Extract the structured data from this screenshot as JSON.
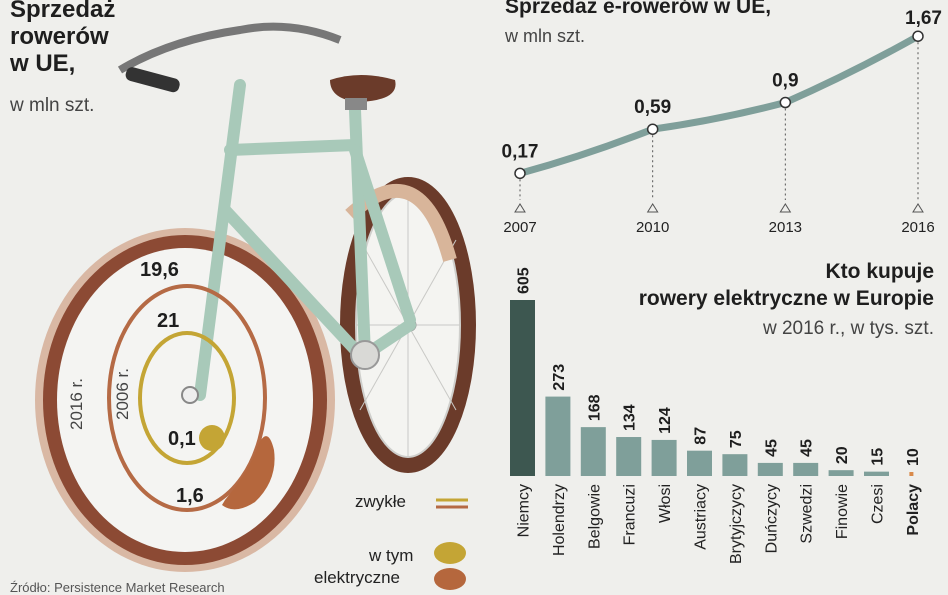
{
  "left_panel": {
    "title_lines": [
      "Sprzedaż",
      "rowerów",
      "w UE,"
    ],
    "unit": "w mln szt."
  },
  "line_panel": {
    "title": "Sprzedaż e-rowerów w UE,",
    "unit": "w mln szt."
  },
  "bar_panel": {
    "title_lines": [
      "Kto kupuje",
      "rowery elektryczne w Europie"
    ],
    "unit": "w 2016 r., w tys. szt."
  },
  "legend": {
    "regular_label": "zwykłe",
    "electric_label_lines": [
      "w tym",
      "elektryczne"
    ]
  },
  "source": "Źródło: Persistence Market Research",
  "colors": {
    "regular_2016": "#b56a45",
    "regular_2006": "#c4a535",
    "electric_2016": "#b5673d",
    "electric_2006": "#c4a535",
    "line": "#7f9f9a",
    "bar": "#7f9f9a",
    "bar_highlight": "#3d5750",
    "bar_poland": "#d98a4a",
    "frame": "#a8c9b9",
    "tyre": "#6b3b2a"
  },
  "chart_data": [
    {
      "type": "pie",
      "title": "Sprzedaż rowerów w UE, w mln szt.",
      "series": [
        {
          "name": "2016 r.",
          "regular": 19.6,
          "electric": 1.6
        },
        {
          "name": "2006 r.",
          "regular": 21,
          "electric": 0.1
        }
      ],
      "labels": {
        "regular_2016": "19,6",
        "regular_2006": "21",
        "electric_2006": "0,1",
        "electric_2016": "1,6"
      },
      "year_labels": [
        "2016 r.",
        "2006 r."
      ]
    },
    {
      "type": "line",
      "title": "Sprzedaż e-rowerów w UE, w mln szt.",
      "x": [
        "2007",
        "2010",
        "2013",
        "2016"
      ],
      "values": [
        0.17,
        0.59,
        0.9,
        1.67
      ],
      "value_labels": [
        "0,17",
        "0,59",
        "0,9",
        "1,67"
      ],
      "ylim": [
        0,
        1.8
      ]
    },
    {
      "type": "bar",
      "title": "Kto kupuje rowery elektryczne w Europie, w 2016 r., w tys. szt.",
      "categories": [
        "Niemcy",
        "Holendrzy",
        "Belgowie",
        "Francuzi",
        "Włosi",
        "Austriacy",
        "Brytyjczycy",
        "Duńczycy",
        "Szwedzi",
        "Finowie",
        "Czesi",
        "Polacy"
      ],
      "values": [
        605,
        273,
        168,
        134,
        124,
        87,
        75,
        45,
        45,
        20,
        15,
        10
      ],
      "ylim": [
        0,
        605
      ]
    }
  ]
}
